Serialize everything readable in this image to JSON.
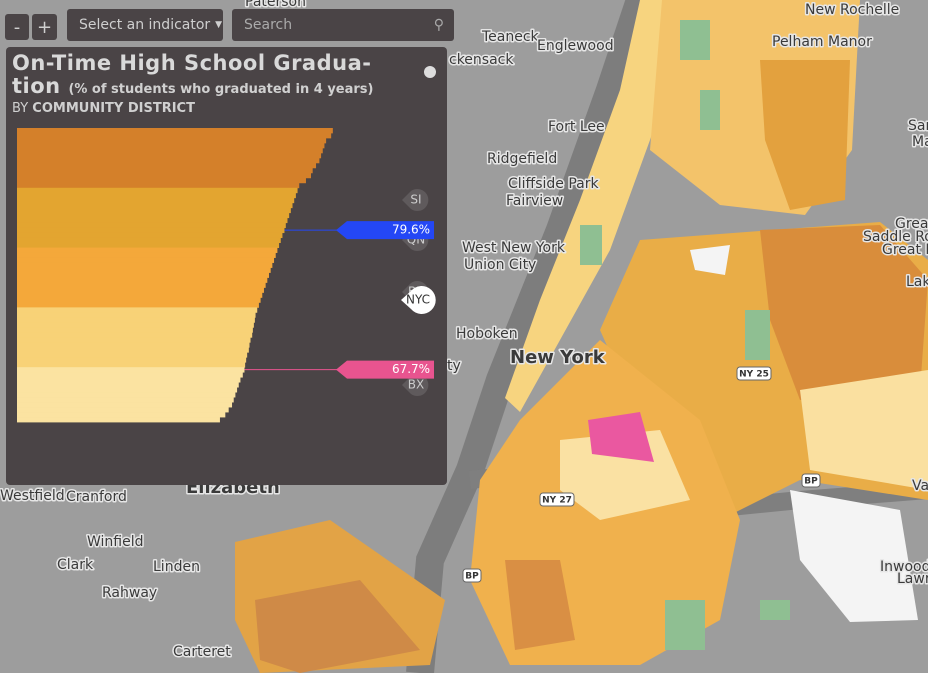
{
  "controls": {
    "zoom_out": "-",
    "zoom_in": "+",
    "indicator_select": "Select an indicator",
    "search_placeholder": "Search"
  },
  "panel": {
    "title_lines": [
      "On-Time High School Gradua-",
      "tion"
    ],
    "subtitle": "(% of students who graduated in 4 years)",
    "by_prefix": "BY",
    "by_label": "COMMUNITY DISTRICT"
  },
  "chart_data": {
    "type": "bar",
    "series": [
      {
        "color": "#d4802a",
        "values": [
          94,
          93.5,
          92,
          91.5,
          91,
          90.5,
          90,
          89,
          88,
          87.5,
          86,
          84
        ]
      },
      {
        "color": "#e3a530",
        "values": [
          83.5,
          83,
          82.5,
          82,
          81.5,
          81,
          80.5,
          80,
          79.6,
          79,
          78.5,
          78
        ]
      },
      {
        "color": "#f4a83a",
        "values": [
          77.5,
          77,
          76.5,
          76,
          75.5,
          75,
          74.5,
          74,
          73.5,
          73,
          72.5,
          72
        ]
      },
      {
        "color": "#f8d277",
        "values": [
          71.5,
          71,
          70.8,
          70.5,
          70.2,
          70,
          69.5,
          69.2,
          69,
          68.5,
          68.2,
          67.9
        ]
      },
      {
        "color": "#fbe3a1",
        "values": [
          67.7,
          67.2,
          66.5,
          66,
          65.5,
          65,
          64.5,
          64,
          63,
          62,
          60.4
        ]
      }
    ],
    "highlights": [
      {
        "value": 79.6,
        "label": "79.6%",
        "color": "#2447f5"
      },
      {
        "value": 67.7,
        "label": "67.7%",
        "color": "#e8548f"
      }
    ],
    "boroughs": [
      "SI",
      "QN",
      "BK",
      "NYC",
      "BX"
    ]
  },
  "map": {
    "labels": [
      "Paterson",
      "New Rochelle",
      "Teaneck",
      "Englewood",
      "Pelham Manor",
      "ckensack",
      "Fort Lee",
      "Ridgefield",
      "Cliffside Park",
      "Fairview",
      "West New York",
      "Union City",
      "Hoboken",
      "New York",
      "Westfield",
      "Cranford",
      "Elizabeth",
      "Winfield",
      "Clark",
      "Linden",
      "Rahway",
      "Carteret",
      "Inwood",
      "Lawre",
      "Great",
      "Saddle Rock",
      "Great Ne",
      "Lake",
      "San",
      "Ma",
      "ty",
      "Va"
    ],
    "shields": [
      "NY 25",
      "NY 27",
      "BP",
      "BP"
    ]
  }
}
